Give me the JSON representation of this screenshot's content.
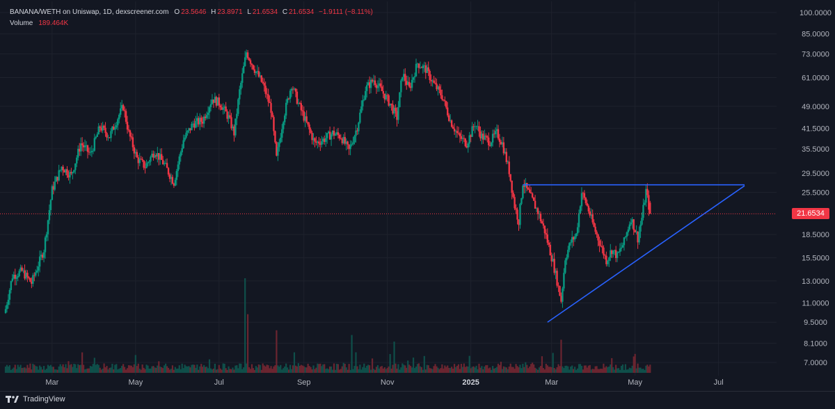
{
  "legend": {
    "symbol": "BANANA/WETH on Uniswap, 1D, dexscreener.com",
    "o_label": "O",
    "o_value": "23.5646",
    "h_label": "H",
    "h_value": "23.8971",
    "l_label": "L",
    "l_value": "21.6534",
    "c_label": "C",
    "c_value": "21.6534",
    "change": "−1.9111 (−8.11%)",
    "volume_label": "Volume",
    "volume_value": "189.464K"
  },
  "footer": {
    "brand": "TradingView"
  },
  "colors": {
    "background": "#131722",
    "up": "#089981",
    "down": "#f23645",
    "volume_up": "#0f4f4a",
    "volume_down": "#6b2530",
    "trendline": "#2962ff",
    "axis_text": "#b2b5be",
    "grid": "#1e222d"
  },
  "chart_data": {
    "type": "candlestick",
    "scale": "log",
    "x_axis": {
      "tick_labels": [
        "Mar",
        "May",
        "Jul",
        "Sep",
        "Nov",
        "2025",
        "Mar",
        "May",
        "Jul"
      ],
      "tick_dates": [
        "2024-03-01",
        "2024-05-01",
        "2024-07-01",
        "2024-09-01",
        "2024-11-01",
        "2025-01-01",
        "2025-03-01",
        "2025-05-01",
        "2025-07-01"
      ]
    },
    "y_axis": {
      "tick_labels": [
        "100.0000",
        "85.0000",
        "73.0000",
        "61.0000",
        "49.0000",
        "41.5000",
        "35.5000",
        "29.5000",
        "25.5000",
        "18.5000",
        "15.5000",
        "13.0000",
        "11.0000",
        "9.5000",
        "8.1000",
        "7.0000"
      ],
      "ylim": [
        6.4,
        104
      ]
    },
    "last_price": "21.6534",
    "x_range": [
      "2024-01-27",
      "2025-07-20"
    ],
    "last_date": "2025-05-12",
    "anchors": [
      [
        "2024-01-27",
        10.5
      ],
      [
        "2024-02-01",
        13.5
      ],
      [
        "2024-02-08",
        14.0
      ],
      [
        "2024-02-15",
        12.8
      ],
      [
        "2024-02-24",
        16.5
      ],
      [
        "2024-03-01",
        26.0
      ],
      [
        "2024-03-08",
        31.0
      ],
      [
        "2024-03-15",
        29.0
      ],
      [
        "2024-03-22",
        37.0
      ],
      [
        "2024-03-29",
        34.0
      ],
      [
        "2024-04-05",
        42.0
      ],
      [
        "2024-04-12",
        39.0
      ],
      [
        "2024-04-19",
        46.0
      ],
      [
        "2024-04-22",
        49.0
      ],
      [
        "2024-04-26",
        40.0
      ],
      [
        "2024-05-02",
        33.0
      ],
      [
        "2024-05-08",
        31.0
      ],
      [
        "2024-05-15",
        35.0
      ],
      [
        "2024-05-22",
        31.5
      ],
      [
        "2024-05-29",
        27.5
      ],
      [
        "2024-06-05",
        38.0
      ],
      [
        "2024-06-12",
        43.0
      ],
      [
        "2024-06-19",
        44.0
      ],
      [
        "2024-06-26",
        52.0
      ],
      [
        "2024-07-02",
        50.0
      ],
      [
        "2024-07-08",
        45.0
      ],
      [
        "2024-07-12",
        40.0
      ],
      [
        "2024-07-16",
        55.0
      ],
      [
        "2024-07-21",
        74.0
      ],
      [
        "2024-07-27",
        65.0
      ],
      [
        "2024-08-02",
        58.0
      ],
      [
        "2024-08-08",
        48.0
      ],
      [
        "2024-08-12",
        33.0
      ],
      [
        "2024-08-17",
        45.0
      ],
      [
        "2024-08-23",
        58.0
      ],
      [
        "2024-08-28",
        50.0
      ],
      [
        "2024-09-03",
        43.0
      ],
      [
        "2024-09-09",
        37.0
      ],
      [
        "2024-09-15",
        38.0
      ],
      [
        "2024-09-22",
        40.0
      ],
      [
        "2024-09-28",
        39.0
      ],
      [
        "2024-10-04",
        35.0
      ],
      [
        "2024-10-10",
        42.0
      ],
      [
        "2024-10-16",
        56.0
      ],
      [
        "2024-10-22",
        60.0
      ],
      [
        "2024-10-28",
        55.0
      ],
      [
        "2024-11-03",
        50.0
      ],
      [
        "2024-11-08",
        45.0
      ],
      [
        "2024-11-12",
        63.0
      ],
      [
        "2024-11-17",
        56.0
      ],
      [
        "2024-11-23",
        68.0
      ],
      [
        "2024-11-29",
        65.0
      ],
      [
        "2024-12-05",
        58.0
      ],
      [
        "2024-12-11",
        53.0
      ],
      [
        "2024-12-17",
        44.0
      ],
      [
        "2024-12-23",
        39.0
      ],
      [
        "2024-12-29",
        37.0
      ],
      [
        "2025-01-04",
        43.0
      ],
      [
        "2025-01-09",
        39.0
      ],
      [
        "2025-01-15",
        37.5
      ],
      [
        "2025-01-20",
        40.0
      ],
      [
        "2025-01-24",
        37.0
      ],
      [
        "2025-01-29",
        30.0
      ],
      [
        "2025-02-02",
        23.0
      ],
      [
        "2025-02-05",
        20.5
      ],
      [
        "2025-02-08",
        27.5
      ],
      [
        "2025-02-13",
        25.0
      ],
      [
        "2025-02-19",
        22.0
      ],
      [
        "2025-02-24",
        19.0
      ],
      [
        "2025-03-02",
        15.0
      ],
      [
        "2025-03-05",
        13.0
      ],
      [
        "2025-03-08",
        11.2
      ],
      [
        "2025-03-11",
        15.5
      ],
      [
        "2025-03-15",
        17.5
      ],
      [
        "2025-03-19",
        18.5
      ],
      [
        "2025-03-23",
        25.5
      ],
      [
        "2025-03-27",
        23.0
      ],
      [
        "2025-04-01",
        19.5
      ],
      [
        "2025-04-06",
        17.0
      ],
      [
        "2025-04-10",
        15.2
      ],
      [
        "2025-04-14",
        16.5
      ],
      [
        "2025-04-18",
        15.7
      ],
      [
        "2025-04-23",
        17.5
      ],
      [
        "2025-04-28",
        21.0
      ],
      [
        "2025-05-03",
        18.0
      ],
      [
        "2025-05-06",
        21.0
      ],
      [
        "2025-05-09",
        25.8
      ],
      [
        "2025-05-12",
        21.6534
      ]
    ],
    "volume_spikes": [
      [
        "2024-07-20",
        1.0
      ],
      [
        "2024-07-22",
        0.62
      ],
      [
        "2024-08-12",
        0.45
      ],
      [
        "2024-10-06",
        0.4
      ],
      [
        "2024-11-06",
        0.33
      ],
      [
        "2025-03-08",
        0.35
      ]
    ],
    "trendlines": [
      {
        "name": "resistance",
        "points": [
          [
            "2025-02-08",
            27.0
          ],
          [
            "2025-07-20",
            27.0
          ]
        ]
      },
      {
        "name": "support",
        "points": [
          [
            "2025-02-26",
            9.5
          ],
          [
            "2025-07-20",
            26.8
          ]
        ]
      }
    ]
  }
}
